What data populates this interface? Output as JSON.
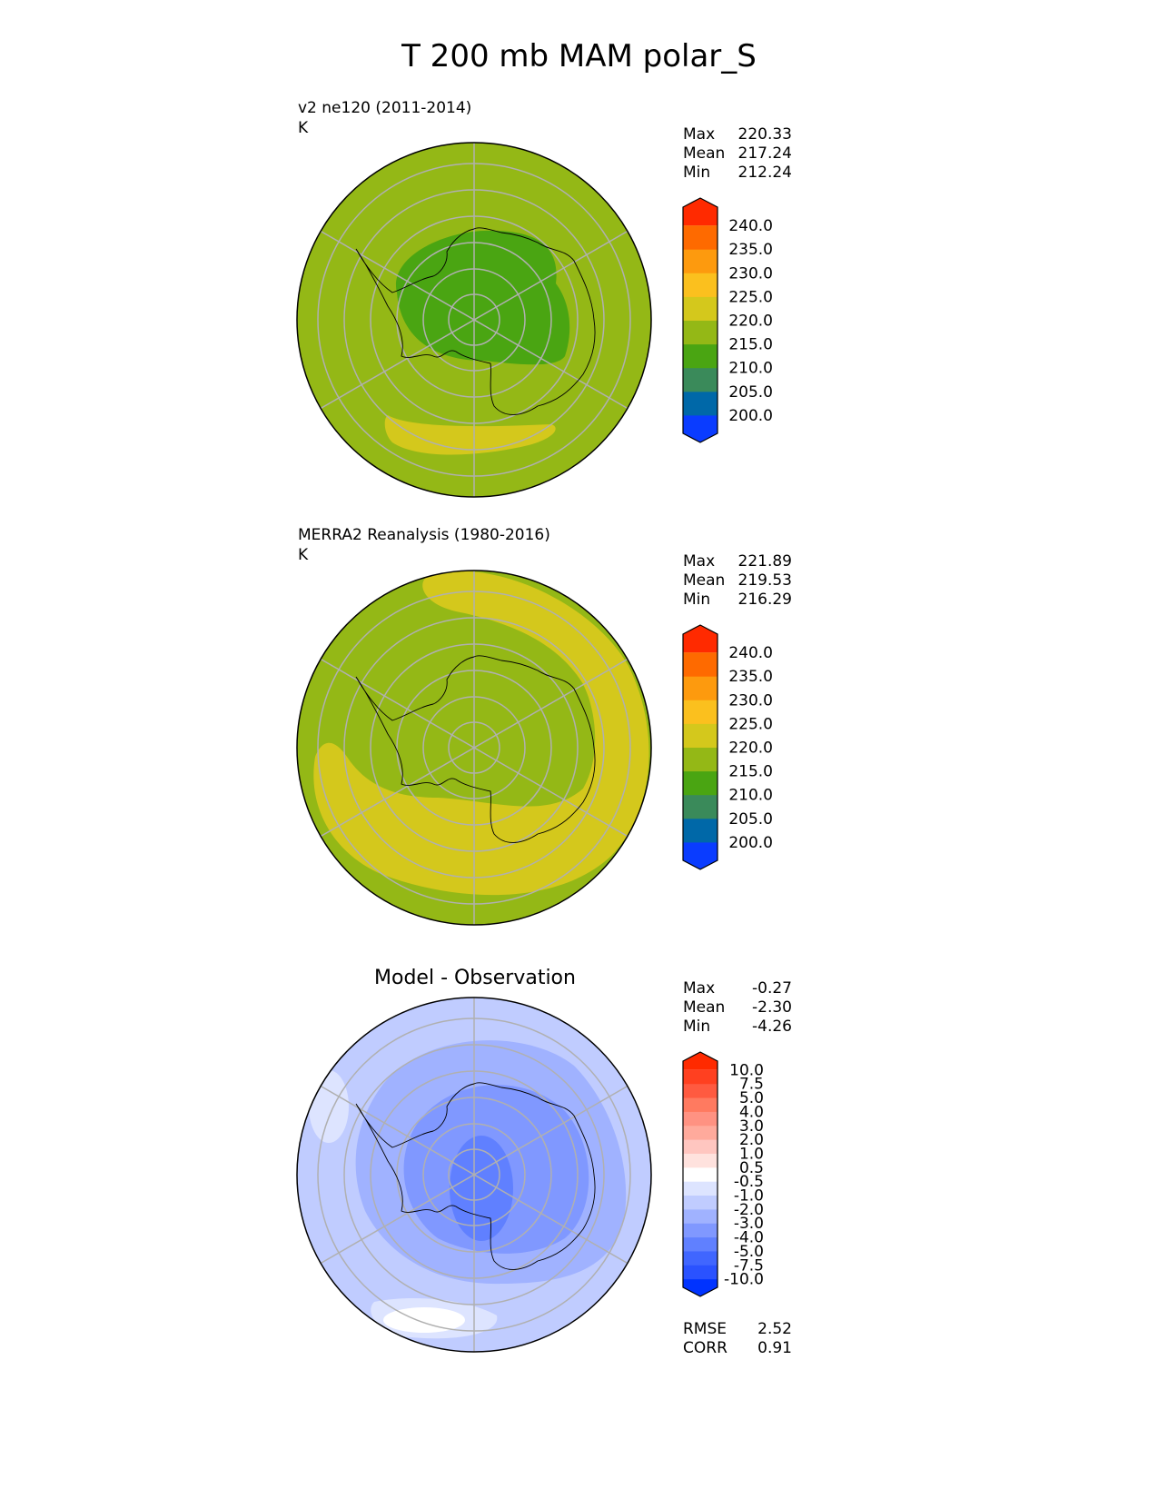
{
  "title": "T 200 mb MAM polar_S",
  "panels": [
    {
      "title": "v2 ne120 (2011-2014)",
      "units": "K",
      "stats": [
        {
          "label": "Max",
          "value": "220.33"
        },
        {
          "label": "Mean",
          "value": "217.24"
        },
        {
          "label": "Min",
          "value": "212.24"
        }
      ]
    },
    {
      "title": "MERRA2 Reanalysis (1980-2016)",
      "units": "K",
      "stats": [
        {
          "label": "Max",
          "value": "221.89"
        },
        {
          "label": "Mean",
          "value": "219.53"
        },
        {
          "label": "Min",
          "value": "216.29"
        }
      ]
    },
    {
      "title": "Model - Observation",
      "stats": [
        {
          "label": "Max",
          "value": "-0.27"
        },
        {
          "label": "Mean",
          "value": "-2.30"
        },
        {
          "label": "Min",
          "value": "-4.26"
        }
      ],
      "metrics": [
        {
          "label": "RMSE",
          "value": "2.52"
        },
        {
          "label": "CORR",
          "value": "0.91"
        }
      ]
    }
  ],
  "chart_data": [
    {
      "type": "heatmap",
      "projection": "south polar stereographic",
      "title": "v2 ne120 (2011-2014)",
      "units": "K",
      "colorbar": {
        "levels": [
          "200.0",
          "205.0",
          "210.0",
          "215.0",
          "220.0",
          "225.0",
          "230.0",
          "235.0",
          "240.0"
        ],
        "colors": [
          "#0a3cff",
          "#0068a8",
          "#3a8a5a",
          "#4aa512",
          "#94b816",
          "#d4c81c",
          "#fbc01e",
          "#fd9a0e",
          "#fe6a00",
          "#ff2a00"
        ],
        "extend": "both"
      }
    },
    {
      "type": "heatmap",
      "projection": "south polar stereographic",
      "title": "MERRA2 Reanalysis (1980-2016)",
      "units": "K",
      "colorbar": {
        "levels": [
          "200.0",
          "205.0",
          "210.0",
          "215.0",
          "220.0",
          "225.0",
          "230.0",
          "235.0",
          "240.0"
        ],
        "colors": [
          "#0a3cff",
          "#0068a8",
          "#3a8a5a",
          "#4aa512",
          "#94b816",
          "#d4c81c",
          "#fbc01e",
          "#fd9a0e",
          "#fe6a00",
          "#ff2a00"
        ],
        "extend": "both"
      }
    },
    {
      "type": "heatmap",
      "projection": "south polar stereographic",
      "title": "Model - Observation",
      "colorbar": {
        "levels": [
          "-10.0",
          "-7.5",
          "-5.0",
          "-4.0",
          "-3.0",
          "-2.0",
          "-1.0",
          "-0.5",
          "0.5",
          "1.0",
          "2.0",
          "3.0",
          "4.0",
          "5.0",
          "7.5",
          "10.0"
        ],
        "colors": [
          "#0033ff",
          "#2a52ff",
          "#4066ff",
          "#6080ff",
          "#8098ff",
          "#a0b2ff",
          "#c0ccff",
          "#dde4ff",
          "#ffffff",
          "#ffe2de",
          "#ffc6c0",
          "#ffaa9c",
          "#ff9282",
          "#ff7a60",
          "#ff5a40",
          "#ff4020",
          "#ff2a00"
        ],
        "extend": "both"
      }
    }
  ]
}
